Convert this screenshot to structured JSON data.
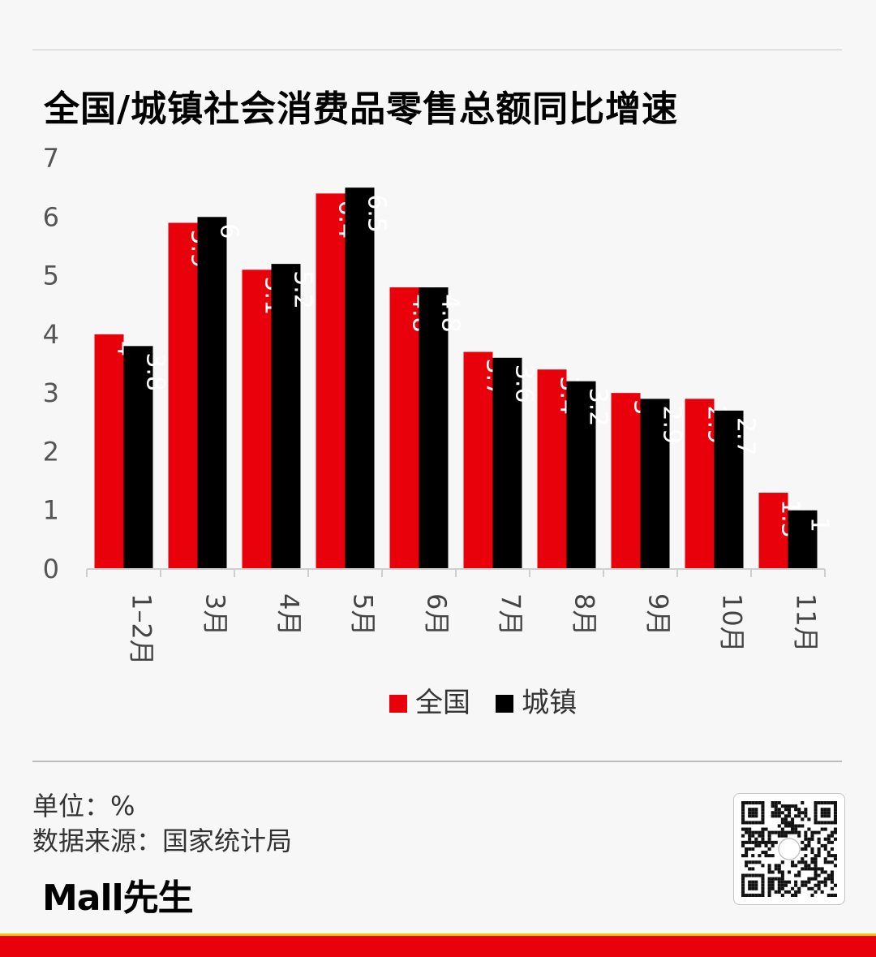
{
  "title": "全国/城镇社会消费品零售总额同比增速",
  "colors": {
    "national": "#e8000b",
    "urban": "#000000",
    "accent_bar": "#e8000b",
    "accent_stripe": "#f3c800"
  },
  "chart_data": {
    "type": "bar",
    "title": "全国/城镇社会消费品零售总额同比增速",
    "categories": [
      "1–2月",
      "3月",
      "4月",
      "5月",
      "6月",
      "7月",
      "8月",
      "9月",
      "10月",
      "11月"
    ],
    "series": [
      {
        "name": "全国",
        "values": [
          4,
          5.9,
          5.1,
          6.4,
          4.8,
          3.7,
          3.4,
          3,
          2.9,
          1.3
        ]
      },
      {
        "name": "城镇",
        "values": [
          3.8,
          6,
          5.2,
          6.5,
          4.8,
          3.6,
          3.2,
          2.9,
          2.7,
          1
        ]
      }
    ],
    "ylim": [
      0,
      7
    ],
    "yticks": [
      0,
      1,
      2,
      3,
      4,
      5,
      6,
      7
    ],
    "xlabel": "",
    "ylabel": "",
    "grid": false,
    "legend": "bottom-center",
    "data_labels": "inside-top-rotated"
  },
  "footer": {
    "unit": "单位：%",
    "source": "数据来源：国家统计局",
    "logo": "Mall先生",
    "qr_icon": "qr-code-icon"
  }
}
